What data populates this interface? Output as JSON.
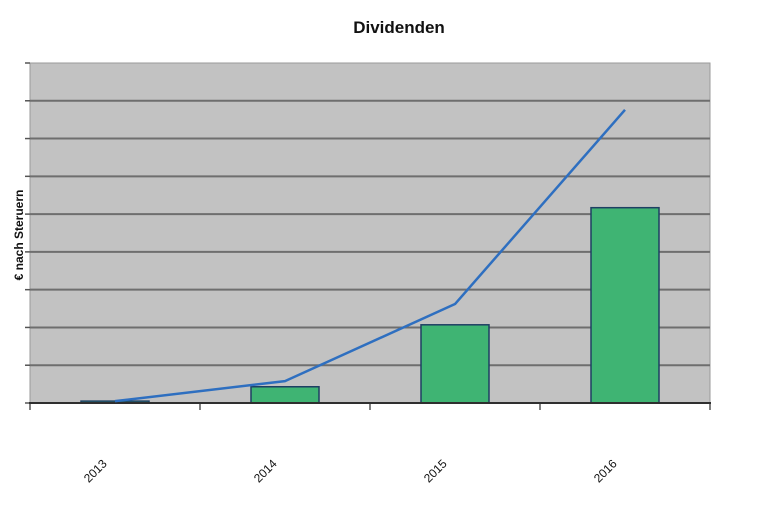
{
  "colors": {
    "page_bg": "#ffffff",
    "plot_bg": "#c2c2c2",
    "plot_border": "#9a9a9a",
    "gridline": "#6e6e6e",
    "axis": "#2f2f2f",
    "tick": "#555555",
    "bar_fill": "#3fb473",
    "bar_border": "#1e3f63",
    "line": "#2e6fc0"
  },
  "chart_data": {
    "type": "bar",
    "subtype": "column chart with overlaid line series (no legend shown)",
    "title": "Dividenden",
    "categories": [
      "2013",
      "2014",
      "2015",
      "2016"
    ],
    "series": [
      {
        "type": "bar",
        "values": [
          0.05,
          0.43,
          2.07,
          5.17
        ]
      },
      {
        "type": "line",
        "values": [
          0.05,
          0.58,
          2.62,
          7.76
        ]
      }
    ],
    "xlabel": "",
    "ylabel": "€ nach Steruern",
    "ylim": [
      0,
      9
    ],
    "y_gridline_divisions": 9,
    "value_units": "gridline divisions — y axis shows tick marks only, no numeric value labels",
    "grid": "horizontal gridlines on gray plot background",
    "x_label_rotation_deg": -45,
    "legend": "none"
  }
}
